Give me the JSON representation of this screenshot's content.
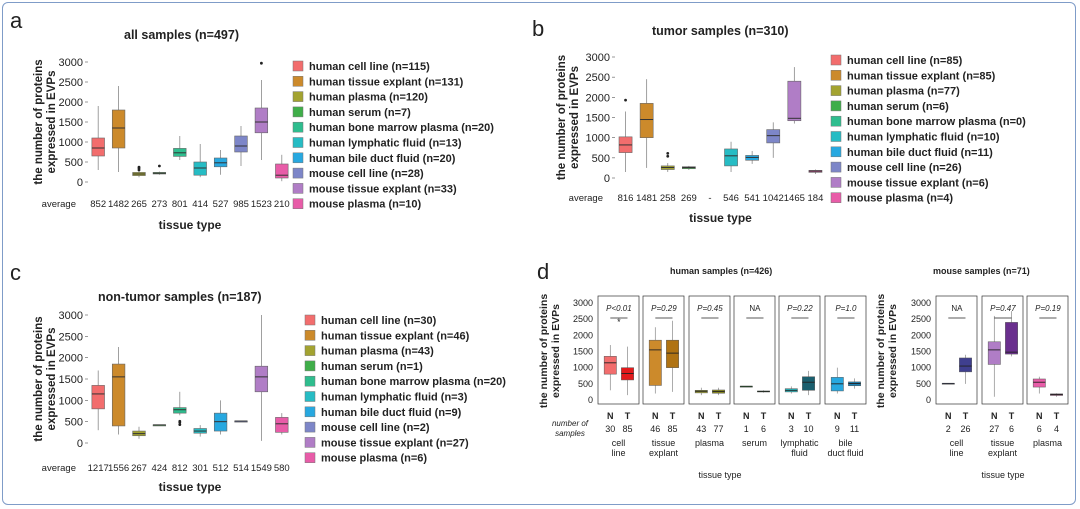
{
  "colors": [
    "#f26d6d",
    "#cc8a2b",
    "#a3a330",
    "#3fae49",
    "#2ebd8e",
    "#26bcc4",
    "#27a8e0",
    "#7d86c8",
    "#b07dc6",
    "#e85ca8"
  ],
  "panels": [
    {
      "label": "a",
      "title": "all samples (n=497)",
      "ylabel1": "the number of proteins",
      "ylabel2": "expressed in EVPs",
      "xlabel": "tissue type",
      "avg_label": "average",
      "chart_data": {
        "type": "box",
        "title": "all samples (n=497)",
        "ylim": [
          0,
          3000
        ],
        "yticks": [
          "0",
          "500",
          "1000",
          "1500",
          "2000",
          "2500",
          "3000"
        ],
        "averages": [
          "852",
          "1482",
          "265",
          "273",
          "801",
          "414",
          "527",
          "985",
          "1523",
          "210"
        ],
        "boxes": [
          [
            300,
            650,
            850,
            1100,
            1900
          ],
          [
            250,
            850,
            1350,
            1800,
            2400
          ],
          [
            120,
            160,
            200,
            240,
            280
          ],
          [
            180,
            200,
            220,
            240,
            260
          ],
          [
            550,
            640,
            730,
            840,
            1150
          ],
          [
            120,
            170,
            350,
            500,
            950
          ],
          [
            180,
            380,
            480,
            600,
            800
          ],
          [
            400,
            750,
            900,
            1150,
            1400
          ],
          [
            550,
            1230,
            1500,
            1850,
            2550
          ],
          [
            20,
            100,
            170,
            450,
            680
          ]
        ],
        "outliers": [
          [],
          [],
          [
            300,
            340,
            370
          ],
          [
            400
          ],
          [],
          [],
          [],
          [],
          [
            2970
          ],
          []
        ],
        "legend": [
          "human cell line (n=115)",
          "human tissue explant (n=131)",
          "human plasma (n=120)",
          "human serum (n=7)",
          "human bone marrow plasma (n=20)",
          "human lymphatic fluid (n=13)",
          "human bile duct fluid (n=20)",
          "mouse cell line (n=28)",
          "mouse tissue explant (n=33)",
          "mouse plasma (n=10)"
        ]
      }
    },
    {
      "label": "b",
      "title": "tumor samples (n=310)",
      "ylabel1": "the number of proteins",
      "ylabel2": "expressed in EVPs",
      "xlabel": "tissue type",
      "avg_label": "average",
      "chart_data": {
        "type": "box",
        "title": "tumor samples (n=310)",
        "ylim": [
          0,
          3000
        ],
        "yticks": [
          "0",
          "500",
          "1000",
          "1500",
          "2000",
          "2500",
          "3000"
        ],
        "averages": [
          "816",
          "1481",
          "258",
          "269",
          "-",
          "546",
          "541",
          "1042",
          "1465",
          "184"
        ],
        "boxes": [
          [
            150,
            630,
            820,
            1020,
            1650
          ],
          [
            250,
            1000,
            1450,
            1850,
            2450
          ],
          [
            150,
            210,
            260,
            300,
            370
          ],
          [
            200,
            230,
            260,
            280,
            300
          ],
          null,
          [
            150,
            300,
            550,
            720,
            900
          ],
          [
            350,
            440,
            510,
            560,
            670
          ],
          [
            500,
            870,
            1050,
            1200,
            1380
          ],
          [
            1350,
            1420,
            1480,
            2400,
            2750
          ],
          [
            100,
            140,
            170,
            190,
            210
          ]
        ],
        "outliers": [
          [
            1930
          ],
          [],
          [
            540,
            610
          ],
          [],
          [],
          [],
          [],
          [],
          [],
          []
        ],
        "legend": [
          "human cell line (n=85)",
          "human tissue explant (n=85)",
          "human plasma (n=77)",
          "human serum (n=6)",
          "human bone marrow plasma (n=0)",
          "human lymphatic fluid (n=10)",
          "human bile duct fluid (n=11)",
          "mouse cell line (n=26)",
          "mouse tissue explant (n=6)",
          "mouse plasma (n=4)"
        ]
      }
    },
    {
      "label": "c",
      "title": "non-tumor samples (n=187)",
      "ylabel1": "the number of proteins",
      "ylabel2": "expressed in EVPs",
      "xlabel": "tissue type",
      "avg_label": "average",
      "chart_data": {
        "type": "box",
        "title": "non-tumor samples (n=187)",
        "ylim": [
          0,
          3000
        ],
        "yticks": [
          "0",
          "500",
          "1000",
          "1500",
          "2000",
          "2500",
          "3000"
        ],
        "averages": [
          "1217",
          "1556",
          "267",
          "424",
          "812",
          "301",
          "512",
          "514",
          "1549",
          "580"
        ],
        "boxes": [
          [
            300,
            800,
            1150,
            1350,
            1700
          ],
          [
            200,
            400,
            1550,
            1850,
            2250
          ],
          [
            100,
            170,
            220,
            280,
            380
          ],
          [
            420,
            420,
            424,
            428,
            428
          ],
          [
            650,
            700,
            780,
            830,
            1200
          ],
          [
            150,
            230,
            280,
            340,
            420
          ],
          [
            200,
            280,
            500,
            700,
            1000
          ],
          [
            510,
            510,
            514,
            518,
            518
          ],
          [
            50,
            1200,
            1550,
            1800,
            3000
          ],
          [
            200,
            250,
            450,
            600,
            700
          ]
        ],
        "outliers": [
          [],
          [],
          [],
          [],
          [
            430,
            480,
            510
          ],
          [],
          [],
          [],
          [],
          []
        ],
        "legend": [
          "human cell line (n=30)",
          "human tissue explant (n=46)",
          "human plasma (n=43)",
          "human serum (n=1)",
          "human bone marrow plasma (n=20)",
          "human lymphatic fluid (n=3)",
          "human bile duct fluid (n=9)",
          "mouse cell line (n=2)",
          "mouse tissue explant (n=27)",
          "mouse plasma (n=6)"
        ]
      }
    }
  ],
  "panel_d": {
    "label": "d",
    "human_title": "human samples (n=426)",
    "mouse_title": "mouse samples (n=71)",
    "ylabel1": "the number of proteins",
    "ylabel2": "expressed in EVPs",
    "xlabel": "tissue type",
    "number_of_samples": "number of samples",
    "yticks": [
      "0",
      "500",
      "1000",
      "1500",
      "2000",
      "2500",
      "3000"
    ],
    "chart_data": {
      "type": "box",
      "ylim": [
        0,
        3000
      ],
      "human": [
        {
          "tissue": "cell line",
          "pval": "P<0.01",
          "star": "*",
          "N": "30",
          "T": "85",
          "boxN": [
            300,
            800,
            1150,
            1350,
            1700
          ],
          "boxT": [
            150,
            620,
            820,
            1000,
            1650
          ],
          "color": "#f26d6d",
          "colorT": "#e31a1c"
        },
        {
          "tissue": "tissue explant",
          "pval": "P=0.29",
          "N": "46",
          "T": "85",
          "boxN": [
            200,
            450,
            1550,
            1850,
            2250
          ],
          "boxT": [
            250,
            1000,
            1450,
            1850,
            2450
          ],
          "color": "#cc8a2b",
          "colorT": "#b07312"
        },
        {
          "tissue": "plasma",
          "pval": "P=0.45",
          "N": "43",
          "T": "77",
          "boxN": [
            150,
            220,
            270,
            300,
            380
          ],
          "boxT": [
            150,
            210,
            260,
            310,
            380
          ],
          "color": "#a3a330",
          "colorT": "#8b8b1e"
        },
        {
          "tissue": "serum",
          "pval": "NA",
          "N": "1",
          "T": "6",
          "boxN": [
            420,
            420,
            424,
            428,
            428
          ],
          "boxT": [
            230,
            250,
            260,
            280,
            300
          ],
          "color": "#3fae49",
          "colorT": "#2d8a35"
        },
        {
          "tissue": "lymphatic fluid",
          "pval": "P=0.22",
          "N": "3",
          "T": "10",
          "boxN": [
            200,
            250,
            300,
            350,
            420
          ],
          "boxT": [
            150,
            300,
            550,
            720,
            900
          ],
          "color": "#26bcc4",
          "colorT": "#1a5f6e"
        },
        {
          "tissue": "bile duct fluid",
          "pval": "P=1.0",
          "N": "9",
          "T": "11",
          "boxN": [
            200,
            280,
            500,
            700,
            1000
          ],
          "boxT": [
            350,
            440,
            510,
            560,
            670
          ],
          "color": "#27a8e0",
          "colorT": "#1c7fb0"
        }
      ],
      "mouse": [
        {
          "tissue": "cell line",
          "pval": "NA",
          "N": "2",
          "T": "26",
          "boxN": [
            510,
            510,
            514,
            518,
            518
          ],
          "boxT": [
            500,
            870,
            1050,
            1300,
            1400
          ],
          "color": "#7d86c8",
          "colorT": "#3f3f8f"
        },
        {
          "tissue": "tissue explant",
          "pval": "P=0.47",
          "N": "27",
          "T": "6",
          "boxN": [
            100,
            1100,
            1550,
            1800,
            2600
          ],
          "boxT": [
            1350,
            1420,
            1480,
            2400,
            2750
          ],
          "color": "#b07dc6",
          "colorT": "#6a2f8e"
        },
        {
          "tissue": "plasma",
          "pval": "P=0.19",
          "N": "6",
          "T": "4",
          "boxN": [
            200,
            400,
            550,
            650,
            720
          ],
          "boxT": [
            100,
            140,
            170,
            190,
            210
          ],
          "color": "#e85ca8",
          "colorT": "#a8437a"
        }
      ]
    }
  }
}
